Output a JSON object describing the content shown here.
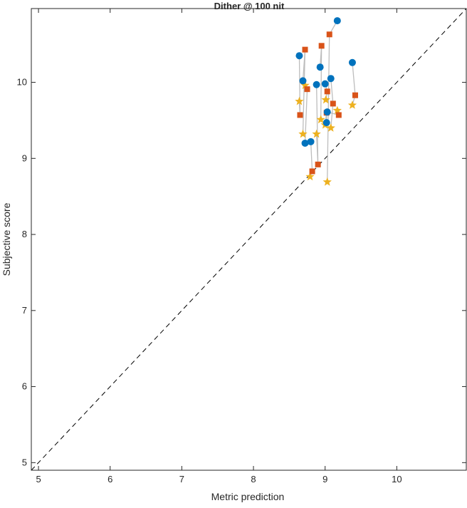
{
  "chart_data": {
    "type": "scatter",
    "title": "Dither @ 100 nit",
    "xlabel": "Metric prediction",
    "ylabel": "Subjective score",
    "xlim": [
      4.9,
      10.97
    ],
    "ylim": [
      4.9,
      10.97
    ],
    "xticks": [
      5,
      6,
      7,
      8,
      9,
      10
    ],
    "yticks": [
      5,
      6,
      7,
      8,
      9,
      10
    ],
    "grid": false,
    "reference_line": {
      "style": "dashed",
      "color": "#000000",
      "from": [
        4.9,
        4.9
      ],
      "to": [
        10.97,
        10.97
      ]
    },
    "colors": {
      "circle": "#0072BD",
      "square": "#D95319",
      "star": "#EDB120",
      "connector": "#BDBDBD"
    },
    "groups": [
      {
        "circle": [
          8.64,
          10.35
        ],
        "square": [
          8.65,
          9.57
        ],
        "star": [
          8.64,
          9.75
        ]
      },
      {
        "circle": [
          8.69,
          10.02
        ],
        "square": [
          8.72,
          10.43
        ],
        "star": [
          8.69,
          9.32
        ]
      },
      {
        "circle": [
          8.72,
          9.2
        ],
        "square": [
          8.75,
          9.91
        ],
        "star": [
          8.72,
          9.96
        ]
      },
      {
        "circle": [
          8.8,
          9.22
        ],
        "square": [
          8.82,
          8.83
        ],
        "star": [
          8.79,
          8.76
        ]
      },
      {
        "circle": [
          8.88,
          9.97
        ],
        "square": [
          8.9,
          8.92
        ],
        "star": [
          8.88,
          9.32
        ]
      },
      {
        "circle": [
          8.93,
          10.2
        ],
        "square": [
          8.95,
          10.48
        ],
        "star": [
          8.94,
          9.51
        ]
      },
      {
        "circle": [
          9.0,
          9.98
        ],
        "square": [
          9.03,
          9.88
        ],
        "star": [
          9.01,
          9.77
        ]
      },
      {
        "circle": [
          9.02,
          9.47
        ],
        "square": [
          9.02,
          9.6
        ],
        "star": [
          9.0,
          9.44
        ]
      },
      {
        "circle": [
          9.17,
          10.81
        ],
        "square": [
          9.06,
          10.63
        ],
        "star": [
          9.03,
          8.69
        ]
      },
      {
        "circle": [
          9.08,
          10.05
        ],
        "square": [
          9.11,
          9.72
        ],
        "star": [
          9.08,
          9.4
        ]
      },
      {
        "circle": [
          9.03,
          9.61
        ],
        "square": [
          9.19,
          9.57
        ],
        "star": [
          9.17,
          9.63
        ]
      },
      {
        "circle": [
          9.38,
          10.26
        ],
        "square": [
          9.42,
          9.83
        ],
        "star": [
          9.38,
          9.7
        ]
      }
    ]
  }
}
